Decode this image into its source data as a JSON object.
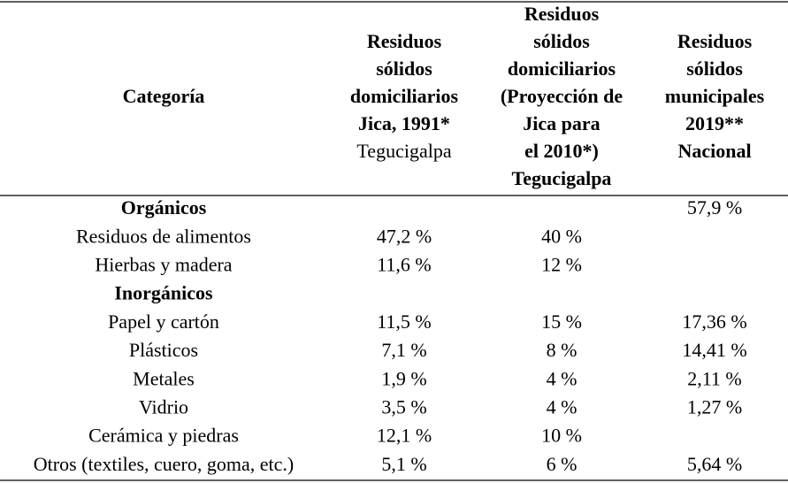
{
  "header": {
    "columns": [
      {
        "lines": [
          {
            "text": "Categoría",
            "bold": true
          }
        ]
      },
      {
        "lines": [
          {
            "text": "Residuos",
            "bold": true
          },
          {
            "text": "sólidos",
            "bold": true
          },
          {
            "text": "domiciliarios",
            "bold": true
          },
          {
            "text": "Jica, 1991*",
            "bold": true
          },
          {
            "text": "Tegucigalpa",
            "bold": false
          }
        ]
      },
      {
        "lines": [
          {
            "text": "Residuos",
            "bold": true
          },
          {
            "text": "sólidos",
            "bold": true
          },
          {
            "text": "domiciliarios",
            "bold": true
          },
          {
            "text": "(Proyección de",
            "bold": true
          },
          {
            "text": "Jica para",
            "bold": true
          },
          {
            "text": "el 2010*)",
            "bold": true
          },
          {
            "text": "Tegucigalpa",
            "bold": true
          }
        ]
      },
      {
        "lines": [
          {
            "text": "Residuos",
            "bold": true
          },
          {
            "text": "sólidos",
            "bold": true
          },
          {
            "text": "municipales",
            "bold": true
          },
          {
            "text": "2019**",
            "bold": true
          },
          {
            "text": "Nacional",
            "bold": true
          }
        ]
      }
    ]
  },
  "rows": [
    {
      "label": "Orgánicos",
      "section": true,
      "cells": [
        null,
        null,
        "57,9 %"
      ]
    },
    {
      "label": "Residuos de alimentos",
      "section": false,
      "cells": [
        "47,2 %",
        "40 %",
        null
      ]
    },
    {
      "label": "Hierbas y madera",
      "section": false,
      "cells": [
        "11,6 %",
        "12 %",
        null
      ]
    },
    {
      "label": "Inorgánicos",
      "section": true,
      "cells": [
        null,
        null,
        null
      ]
    },
    {
      "label": "Papel y cartón",
      "section": false,
      "cells": [
        "11,5 %",
        "15 %",
        "17,36 %"
      ]
    },
    {
      "label": "Plásticos",
      "section": false,
      "cells": [
        "7,1 %",
        "8 %",
        "14,41 %"
      ]
    },
    {
      "label": "Metales",
      "section": false,
      "cells": [
        "1,9 %",
        "4 %",
        "2,11 %"
      ]
    },
    {
      "label": "Vidrio",
      "section": false,
      "cells": [
        "3,5 %",
        "4 %",
        "1,27 %"
      ]
    },
    {
      "label": "Cerámica y piedras",
      "section": false,
      "cells": [
        "12,1 %",
        "10 %",
        null
      ]
    },
    {
      "label": "Otros (textiles, cuero, goma, etc.)",
      "section": false,
      "cells": [
        "5,1 %",
        "6 %",
        "5,64 %"
      ]
    }
  ]
}
